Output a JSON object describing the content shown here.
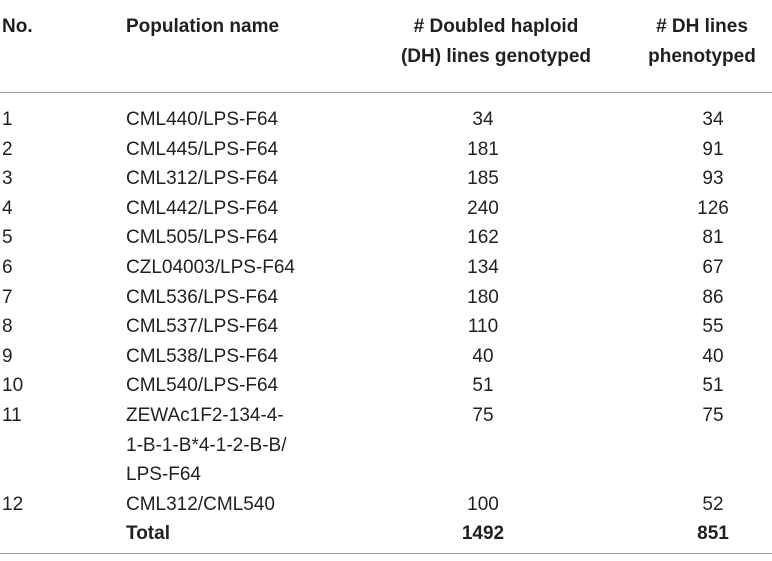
{
  "table": {
    "headers": {
      "no": "No.",
      "population": "Population name",
      "dh_genotyped": [
        "# Doubled haploid",
        "(DH) lines genotyped"
      ],
      "dh_phenotyped": [
        "# DH lines",
        "phenotyped"
      ]
    },
    "rows": [
      {
        "no": "1",
        "name": [
          "CML440/LPS-F64"
        ],
        "genotyped": "34",
        "phenotyped": "34"
      },
      {
        "no": "2",
        "name": [
          "CML445/LPS-F64"
        ],
        "genotyped": "181",
        "phenotyped": "91"
      },
      {
        "no": "3",
        "name": [
          "CML312/LPS-F64"
        ],
        "genotyped": "185",
        "phenotyped": "93"
      },
      {
        "no": "4",
        "name": [
          "CML442/LPS-F64"
        ],
        "genotyped": "240",
        "phenotyped": "126"
      },
      {
        "no": "5",
        "name": [
          "CML505/LPS-F64"
        ],
        "genotyped": "162",
        "phenotyped": "81"
      },
      {
        "no": "6",
        "name": [
          "CZL04003/LPS-F64"
        ],
        "genotyped": "134",
        "phenotyped": "67"
      },
      {
        "no": "7",
        "name": [
          "CML536/LPS-F64"
        ],
        "genotyped": "180",
        "phenotyped": "86"
      },
      {
        "no": "8",
        "name": [
          "CML537/LPS-F64"
        ],
        "genotyped": "110",
        "phenotyped": "55"
      },
      {
        "no": "9",
        "name": [
          "CML538/LPS-F64"
        ],
        "genotyped": "40",
        "phenotyped": "40"
      },
      {
        "no": "10",
        "name": [
          "CML540/LPS-F64"
        ],
        "genotyped": "51",
        "phenotyped": "51"
      },
      {
        "no": "11",
        "name": [
          "ZEWAc1F2-134-4-",
          "1-B-1-B*4-1-2-B-B/",
          "LPS-F64"
        ],
        "genotyped": "75",
        "phenotyped": "75"
      },
      {
        "no": "12",
        "name": [
          "CML312/CML540"
        ],
        "genotyped": "100",
        "phenotyped": "52"
      }
    ],
    "total": {
      "label": "Total",
      "genotyped": "1492",
      "phenotyped": "851"
    }
  }
}
